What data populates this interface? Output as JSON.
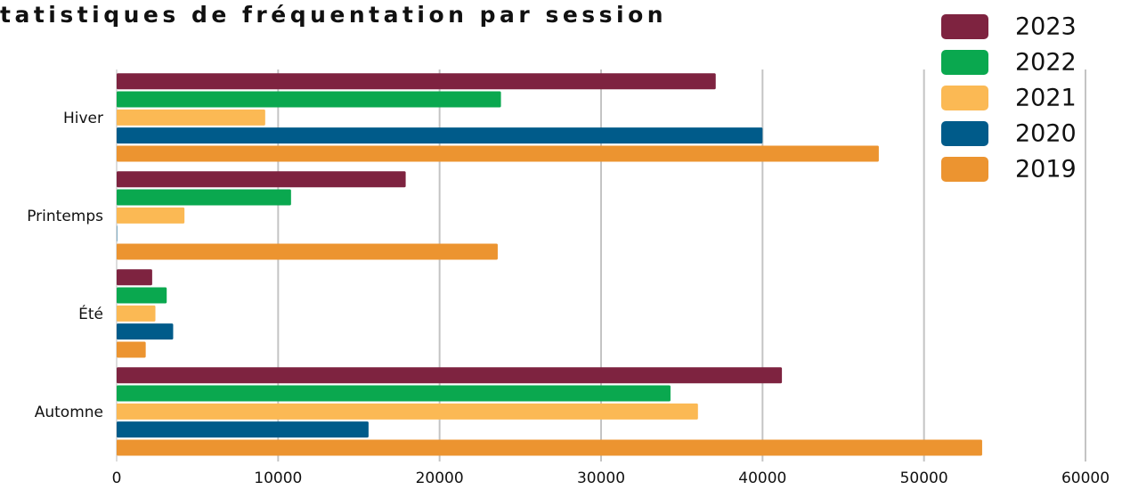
{
  "chart_data": {
    "type": "barh",
    "title": "tatistiques de fréquentation par session",
    "categories": [
      "Hiver",
      "Printemps",
      "Été",
      "Automne"
    ],
    "series": [
      {
        "name": "2023",
        "color": "#7e2340",
        "values": [
          37100,
          17900,
          2200,
          41200
        ]
      },
      {
        "name": "2022",
        "color": "#0aa84f",
        "values": [
          23800,
          10800,
          3100,
          34300
        ]
      },
      {
        "name": "2021",
        "color": "#fbb954",
        "values": [
          9200,
          4200,
          2400,
          36000
        ]
      },
      {
        "name": "2020",
        "color": "#005b8a",
        "values": [
          40000,
          0,
          3500,
          15600
        ]
      },
      {
        "name": "2019",
        "color": "#ec9430",
        "values": [
          47200,
          23600,
          1800,
          53600
        ]
      }
    ],
    "xlim": [
      0,
      60000
    ],
    "xticks": [
      0,
      10000,
      20000,
      30000,
      40000,
      50000,
      60000
    ],
    "grid": true,
    "legend": "upper right"
  }
}
